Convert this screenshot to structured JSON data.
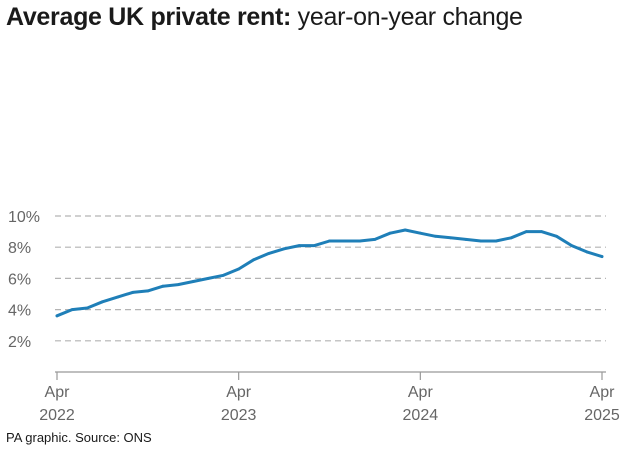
{
  "title_bold": "Average UK private rent:",
  "title_rest": " year-on-year change",
  "source": "PA graphic. Source: ONS",
  "chart_data": {
    "type": "line",
    "title": "Average UK private rent: year-on-year change",
    "xlabel": "",
    "ylabel": "",
    "ylim": [
      0,
      10
    ],
    "grid": true,
    "y_ticks": [
      {
        "value": 2,
        "label": "2%"
      },
      {
        "value": 4,
        "label": "4%"
      },
      {
        "value": 6,
        "label": "6%"
      },
      {
        "value": 8,
        "label": "8%"
      },
      {
        "value": 10,
        "label": "10%"
      }
    ],
    "x_ticks": [
      {
        "value": "2022-04",
        "line1": "Apr",
        "line2": "2022"
      },
      {
        "value": "2023-04",
        "line1": "Apr",
        "line2": "2023"
      },
      {
        "value": "2024-04",
        "line1": "Apr",
        "line2": "2024"
      },
      {
        "value": "2025-04",
        "line1": "Apr",
        "line2": "2025"
      }
    ],
    "colors": {
      "line": "#1f7fb8",
      "grid": "#b3b3b3",
      "axis": "#999999"
    },
    "series": [
      {
        "x": [
          "2022-04",
          "2022-05",
          "2022-06",
          "2022-07",
          "2022-08",
          "2022-09",
          "2022-10",
          "2022-11",
          "2022-12",
          "2023-01",
          "2023-02",
          "2023-03",
          "2023-04",
          "2023-05",
          "2023-06",
          "2023-07",
          "2023-08",
          "2023-09",
          "2023-10",
          "2023-11",
          "2023-12",
          "2024-01",
          "2024-02",
          "2024-03",
          "2024-04",
          "2024-05",
          "2024-06",
          "2024-07",
          "2024-08",
          "2024-09",
          "2024-10",
          "2024-11",
          "2024-12",
          "2025-01",
          "2025-02",
          "2025-03",
          "2025-04"
        ],
        "values": [
          3.6,
          4.0,
          4.1,
          4.5,
          4.8,
          5.1,
          5.2,
          5.5,
          5.6,
          5.8,
          6.0,
          6.2,
          6.6,
          7.2,
          7.6,
          7.9,
          8.1,
          8.1,
          8.4,
          8.4,
          8.4,
          8.5,
          8.9,
          9.1,
          8.9,
          8.7,
          8.6,
          8.5,
          8.4,
          8.4,
          8.6,
          9.0,
          9.0,
          8.7,
          8.1,
          7.7,
          7.4
        ]
      }
    ]
  }
}
